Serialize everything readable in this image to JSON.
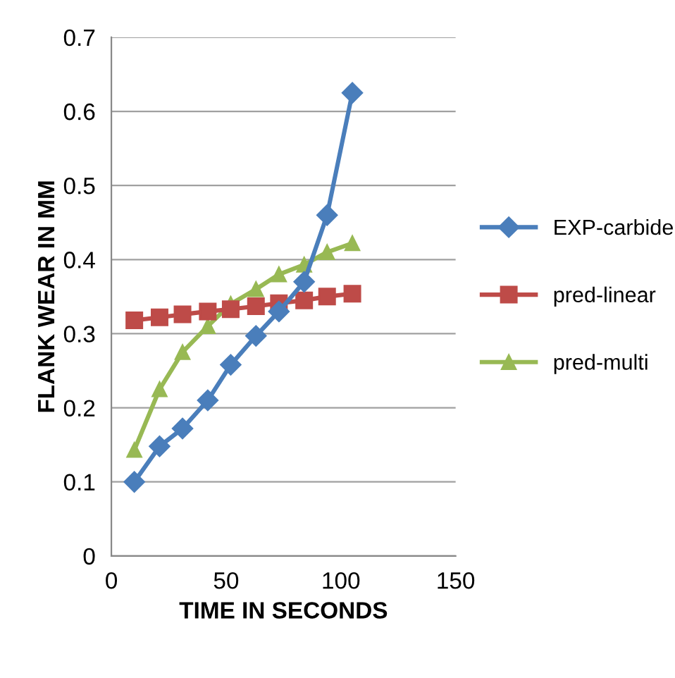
{
  "chart_data": {
    "type": "line",
    "xlabel": "TIME IN SECONDS",
    "ylabel": "FLANK WEAR IN MM",
    "x": [
      10,
      21,
      31,
      42,
      52,
      63,
      73,
      84,
      94,
      105
    ],
    "series": [
      {
        "name": "EXP-carbide",
        "color": "#4a7ebb",
        "marker": "diamond",
        "values": [
          0.1,
          0.148,
          0.172,
          0.21,
          0.258,
          0.297,
          0.33,
          0.37,
          0.46,
          0.625
        ]
      },
      {
        "name": "pred-linear",
        "color": "#be4b48",
        "marker": "square",
        "values": [
          0.318,
          0.322,
          0.326,
          0.33,
          0.333,
          0.337,
          0.341,
          0.345,
          0.35,
          0.354
        ]
      },
      {
        "name": "pred-multi",
        "color": "#98b954",
        "marker": "triangle",
        "values": [
          0.143,
          0.225,
          0.275,
          0.31,
          0.34,
          0.36,
          0.38,
          0.393,
          0.41,
          0.422
        ]
      }
    ],
    "xlim": [
      0,
      150
    ],
    "xticks": [
      0,
      50,
      100,
      150
    ],
    "ylim": [
      0,
      0.7
    ],
    "yticks": [
      0,
      0.1,
      0.2,
      0.3,
      0.4,
      0.5,
      0.6,
      0.7
    ],
    "grid": "y",
    "legend": "right"
  }
}
